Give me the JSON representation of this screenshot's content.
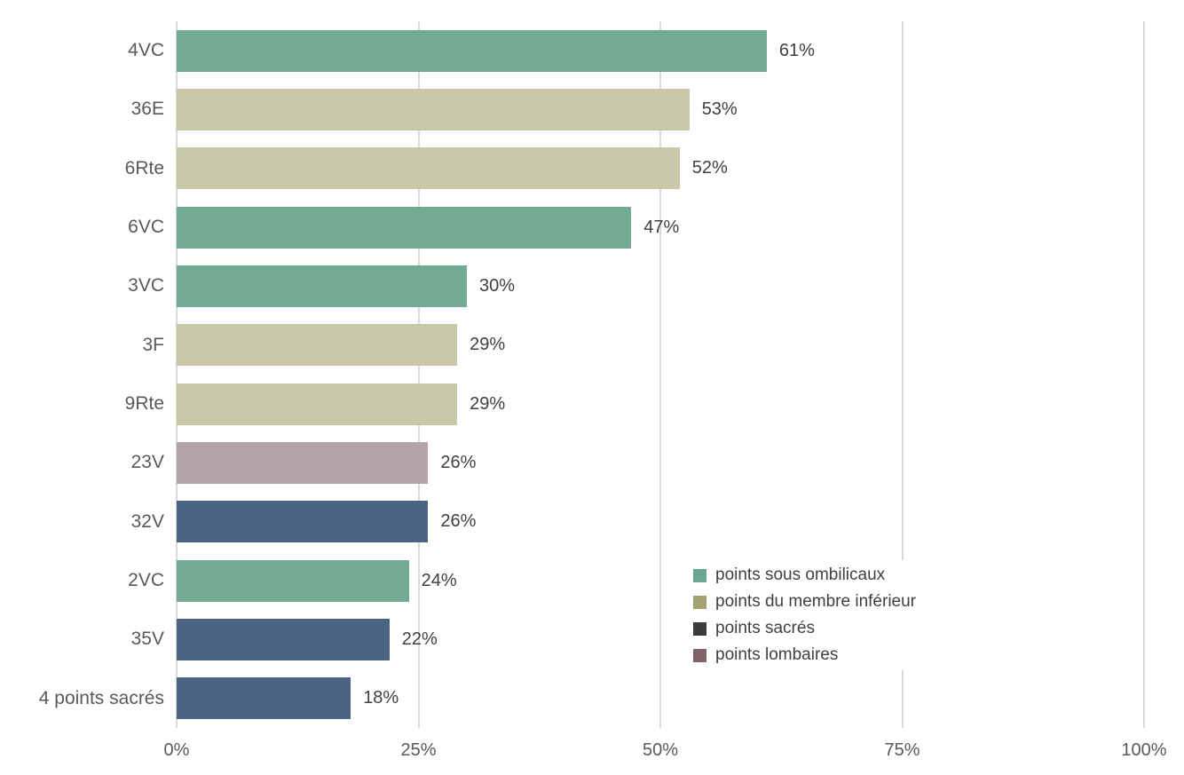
{
  "chart_data": {
    "type": "bar",
    "orientation": "horizontal",
    "title": "",
    "xlabel": "",
    "ylabel": "",
    "xlim": [
      0,
      100
    ],
    "grid": true,
    "categories": [
      "4VC",
      "36E",
      "6Rte",
      "6VC",
      "3VC",
      "3F",
      "9Rte",
      "23V",
      "32V",
      "2VC",
      "35V",
      "4 points sacrés"
    ],
    "values": [
      61,
      53,
      52,
      47,
      30,
      29,
      29,
      26,
      26,
      24,
      22,
      18
    ],
    "value_labels": [
      "61%",
      "53%",
      "52%",
      "47%",
      "30%",
      "29%",
      "29%",
      "26%",
      "26%",
      "24%",
      "22%",
      "18%"
    ],
    "bar_series": [
      "sous_ombilicaux",
      "membre_inferieur",
      "membre_inferieur",
      "sous_ombilicaux",
      "sous_ombilicaux",
      "membre_inferieur",
      "membre_inferieur",
      "lombaires",
      "sacres",
      "sous_ombilicaux",
      "sacres",
      "sacres"
    ],
    "x_ticks": [
      {
        "label": "0%",
        "value": 0
      },
      {
        "label": "25%",
        "value": 25
      },
      {
        "label": "50%",
        "value": 50
      },
      {
        "label": "75%",
        "value": 75
      },
      {
        "label": "100%",
        "value": 100
      }
    ],
    "legend_position": "inside-bottom-right",
    "legend": [
      {
        "key": "sous_ombilicaux",
        "label": "points sous ombilicaux",
        "swatch_color": "#6ba690",
        "bar_color": "#73aa94"
      },
      {
        "key": "membre_inferieur",
        "label": "points du membre inférieur",
        "swatch_color": "#a3a370",
        "bar_color": "#c9c9a9"
      },
      {
        "key": "sacres",
        "label": "points sacrés",
        "swatch_color": "#3a3d40",
        "bar_color": "#4b6385"
      },
      {
        "key": "lombaires",
        "label": "points lombaires",
        "swatch_color": "#806468",
        "bar_color": "#b2a3a6"
      }
    ],
    "colors": {
      "gridline": "#d9d9d9",
      "axis_text": "#595959",
      "category_text": "#595959",
      "value_text": "#404040",
      "legend_text": "#404040",
      "background": "#ffffff"
    }
  }
}
